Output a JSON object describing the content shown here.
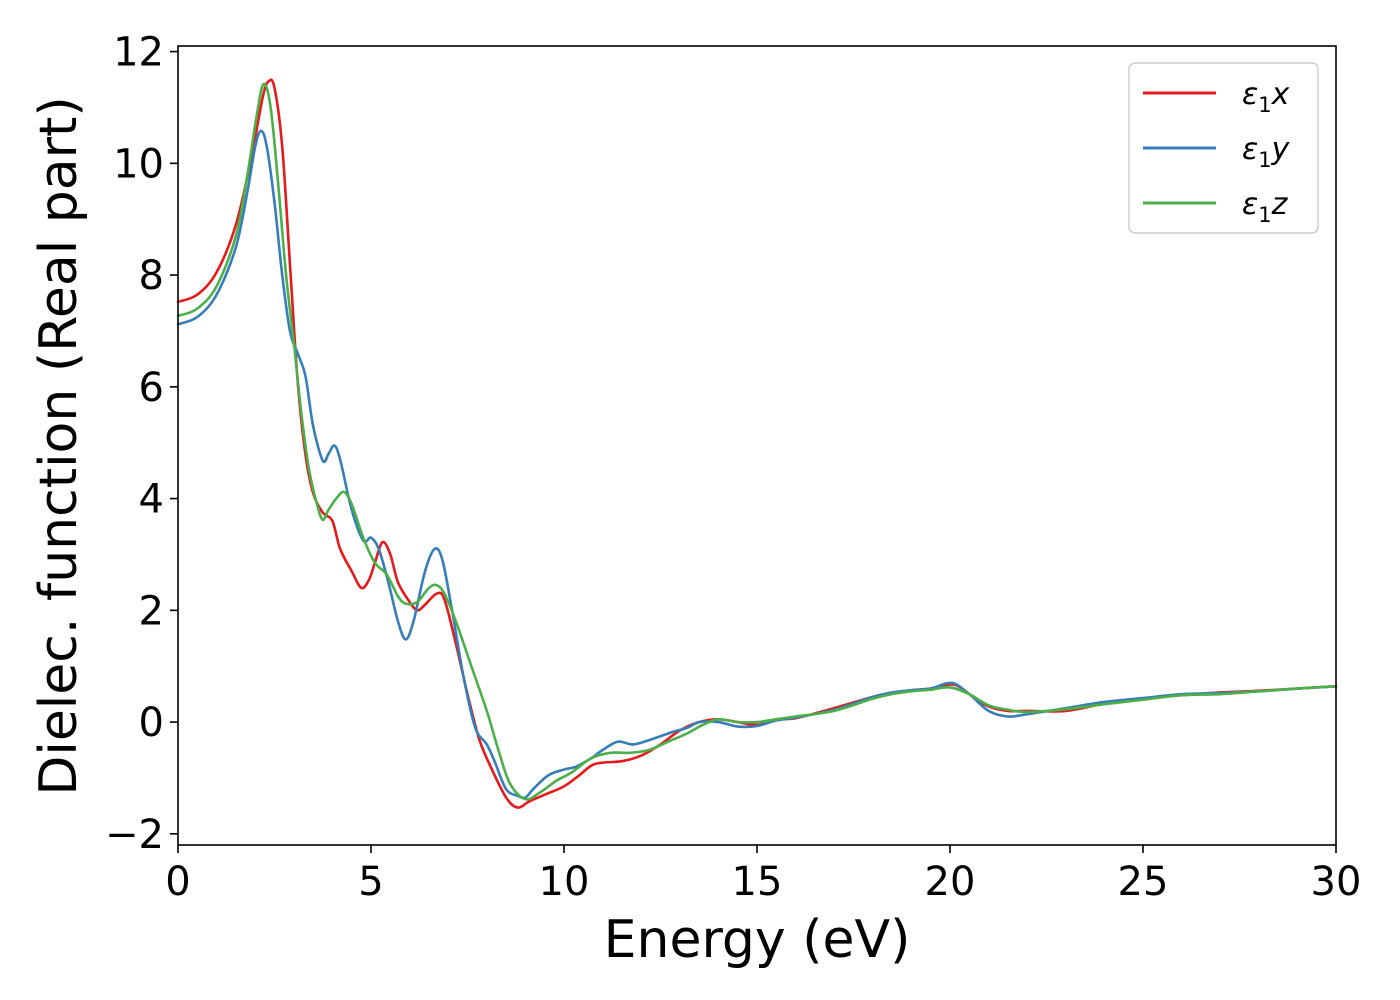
{
  "chart_data": {
    "type": "line",
    "title": "",
    "xlabel": "Energy (eV)",
    "ylabel": "Dielec. function (Real part)",
    "xlim": [
      0,
      30
    ],
    "ylim": [
      -2.2,
      12.1
    ],
    "xticks": [
      0,
      5,
      10,
      15,
      20,
      25,
      30
    ],
    "xtick_labels": [
      "0",
      "5",
      "10",
      "15",
      "20",
      "25",
      "30"
    ],
    "yticks": [
      -2,
      0,
      2,
      4,
      6,
      8,
      10,
      12
    ],
    "ytick_labels": [
      "−2",
      "0",
      "2",
      "4",
      "6",
      "8",
      "10",
      "12"
    ],
    "grid": false,
    "legend": {
      "placement": "top-right"
    },
    "series": [
      {
        "name": "ε₁x",
        "label_base": "ε",
        "label_sub": "1",
        "label_suffix": "x",
        "color": "#e41a1c",
        "points": [
          [
            0,
            7.52
          ],
          [
            0.5,
            7.65
          ],
          [
            1.0,
            8.05
          ],
          [
            1.5,
            8.9
          ],
          [
            1.9,
            10.1
          ],
          [
            2.2,
            11.2
          ],
          [
            2.35,
            11.47
          ],
          [
            2.5,
            11.35
          ],
          [
            2.7,
            10.3
          ],
          [
            2.9,
            8.2
          ],
          [
            3.1,
            6.1
          ],
          [
            3.3,
            4.8
          ],
          [
            3.5,
            4.1
          ],
          [
            3.75,
            3.75
          ],
          [
            4.0,
            3.6
          ],
          [
            4.2,
            3.1
          ],
          [
            4.5,
            2.7
          ],
          [
            4.75,
            2.4
          ],
          [
            4.95,
            2.55
          ],
          [
            5.1,
            2.85
          ],
          [
            5.3,
            3.22
          ],
          [
            5.5,
            3.0
          ],
          [
            5.7,
            2.5
          ],
          [
            6.0,
            2.15
          ],
          [
            6.2,
            2.0
          ],
          [
            6.4,
            2.1
          ],
          [
            6.7,
            2.3
          ],
          [
            6.9,
            2.2
          ],
          [
            7.2,
            1.4
          ],
          [
            7.5,
            0.5
          ],
          [
            7.8,
            -0.3
          ],
          [
            8.1,
            -0.8
          ],
          [
            8.5,
            -1.35
          ],
          [
            8.8,
            -1.53
          ],
          [
            9.1,
            -1.42
          ],
          [
            9.5,
            -1.3
          ],
          [
            10.0,
            -1.15
          ],
          [
            10.4,
            -0.95
          ],
          [
            10.8,
            -0.75
          ],
          [
            11.5,
            -0.7
          ],
          [
            12.0,
            -0.6
          ],
          [
            12.5,
            -0.4
          ],
          [
            13.0,
            -0.15
          ],
          [
            13.5,
            0.0
          ],
          [
            14.0,
            0.05
          ],
          [
            14.5,
            0.0
          ],
          [
            15.0,
            -0.05
          ],
          [
            15.5,
            0.05
          ],
          [
            16.0,
            0.07
          ],
          [
            17.0,
            0.25
          ],
          [
            18.0,
            0.45
          ],
          [
            18.5,
            0.52
          ],
          [
            19.0,
            0.57
          ],
          [
            19.5,
            0.6
          ],
          [
            20.1,
            0.67
          ],
          [
            20.6,
            0.45
          ],
          [
            21.0,
            0.28
          ],
          [
            21.5,
            0.2
          ],
          [
            22.0,
            0.2
          ],
          [
            23.0,
            0.2
          ],
          [
            24.0,
            0.33
          ],
          [
            25.0,
            0.42
          ],
          [
            26.0,
            0.48
          ],
          [
            27.0,
            0.53
          ],
          [
            28.0,
            0.56
          ],
          [
            29.0,
            0.6
          ],
          [
            30.0,
            0.64
          ]
        ]
      },
      {
        "name": "ε₁y",
        "label_base": "ε",
        "label_sub": "1",
        "label_suffix": "y",
        "color": "#377eb8",
        "points": [
          [
            0,
            7.12
          ],
          [
            0.5,
            7.25
          ],
          [
            1.0,
            7.65
          ],
          [
            1.5,
            8.5
          ],
          [
            1.8,
            9.5
          ],
          [
            2.0,
            10.3
          ],
          [
            2.15,
            10.58
          ],
          [
            2.3,
            10.3
          ],
          [
            2.5,
            9.3
          ],
          [
            2.7,
            8.0
          ],
          [
            2.9,
            7.0
          ],
          [
            3.1,
            6.6
          ],
          [
            3.3,
            6.2
          ],
          [
            3.5,
            5.3
          ],
          [
            3.75,
            4.68
          ],
          [
            3.9,
            4.8
          ],
          [
            4.05,
            4.95
          ],
          [
            4.2,
            4.7
          ],
          [
            4.5,
            3.8
          ],
          [
            4.8,
            3.25
          ],
          [
            5.0,
            3.3
          ],
          [
            5.2,
            3.1
          ],
          [
            5.45,
            2.5
          ],
          [
            5.7,
            1.8
          ],
          [
            5.9,
            1.48
          ],
          [
            6.1,
            1.8
          ],
          [
            6.4,
            2.7
          ],
          [
            6.65,
            3.1
          ],
          [
            6.85,
            2.9
          ],
          [
            7.1,
            2.0
          ],
          [
            7.4,
            0.8
          ],
          [
            7.7,
            -0.1
          ],
          [
            8.0,
            -0.4
          ],
          [
            8.2,
            -0.7
          ],
          [
            8.5,
            -1.2
          ],
          [
            8.8,
            -1.32
          ],
          [
            9.0,
            -1.35
          ],
          [
            9.2,
            -1.2
          ],
          [
            9.6,
            -0.95
          ],
          [
            10.0,
            -0.85
          ],
          [
            10.3,
            -0.8
          ],
          [
            10.7,
            -0.65
          ],
          [
            11.0,
            -0.5
          ],
          [
            11.4,
            -0.35
          ],
          [
            11.8,
            -0.4
          ],
          [
            12.3,
            -0.3
          ],
          [
            12.8,
            -0.18
          ],
          [
            13.2,
            -0.1
          ],
          [
            13.5,
            0.0
          ],
          [
            14.0,
            0.0
          ],
          [
            14.5,
            -0.08
          ],
          [
            15.0,
            -0.07
          ],
          [
            15.5,
            0.03
          ],
          [
            16.0,
            0.08
          ],
          [
            17.0,
            0.22
          ],
          [
            18.0,
            0.45
          ],
          [
            18.5,
            0.53
          ],
          [
            19.0,
            0.57
          ],
          [
            19.5,
            0.6
          ],
          [
            20.05,
            0.7
          ],
          [
            20.5,
            0.5
          ],
          [
            21.0,
            0.2
          ],
          [
            21.5,
            0.1
          ],
          [
            22.0,
            0.14
          ],
          [
            23.0,
            0.25
          ],
          [
            24.0,
            0.36
          ],
          [
            25.0,
            0.43
          ],
          [
            26.0,
            0.5
          ],
          [
            27.0,
            0.52
          ],
          [
            28.0,
            0.55
          ],
          [
            29.0,
            0.6
          ],
          [
            30.0,
            0.64
          ]
        ]
      },
      {
        "name": "ε₁z",
        "label_base": "ε",
        "label_sub": "1",
        "label_suffix": "z",
        "color": "#4daf4a",
        "points": [
          [
            0,
            7.27
          ],
          [
            0.5,
            7.4
          ],
          [
            1.0,
            7.8
          ],
          [
            1.5,
            8.7
          ],
          [
            1.8,
            9.8
          ],
          [
            2.05,
            10.9
          ],
          [
            2.22,
            11.42
          ],
          [
            2.4,
            11.0
          ],
          [
            2.6,
            9.6
          ],
          [
            2.8,
            8.0
          ],
          [
            3.0,
            6.8
          ],
          [
            3.2,
            5.5
          ],
          [
            3.4,
            4.5
          ],
          [
            3.6,
            3.9
          ],
          [
            3.75,
            3.62
          ],
          [
            3.9,
            3.8
          ],
          [
            4.1,
            4.0
          ],
          [
            4.3,
            4.12
          ],
          [
            4.5,
            3.9
          ],
          [
            4.8,
            3.3
          ],
          [
            5.1,
            2.85
          ],
          [
            5.4,
            2.65
          ],
          [
            5.7,
            2.25
          ],
          [
            5.9,
            2.12
          ],
          [
            6.2,
            2.15
          ],
          [
            6.5,
            2.4
          ],
          [
            6.7,
            2.45
          ],
          [
            6.9,
            2.3
          ],
          [
            7.2,
            1.8
          ],
          [
            7.6,
            1.0
          ],
          [
            8.0,
            0.2
          ],
          [
            8.3,
            -0.5
          ],
          [
            8.6,
            -1.1
          ],
          [
            9.0,
            -1.38
          ],
          [
            9.4,
            -1.25
          ],
          [
            9.8,
            -1.05
          ],
          [
            10.2,
            -0.9
          ],
          [
            10.7,
            -0.65
          ],
          [
            11.2,
            -0.55
          ],
          [
            11.7,
            -0.55
          ],
          [
            12.2,
            -0.5
          ],
          [
            12.7,
            -0.35
          ],
          [
            13.2,
            -0.2
          ],
          [
            13.6,
            -0.05
          ],
          [
            14.0,
            0.05
          ],
          [
            14.5,
            0.0
          ],
          [
            15.0,
            0.0
          ],
          [
            15.5,
            0.05
          ],
          [
            16.0,
            0.1
          ],
          [
            17.0,
            0.2
          ],
          [
            18.0,
            0.42
          ],
          [
            18.5,
            0.5
          ],
          [
            19.0,
            0.55
          ],
          [
            19.5,
            0.58
          ],
          [
            20.0,
            0.62
          ],
          [
            20.5,
            0.5
          ],
          [
            21.0,
            0.3
          ],
          [
            21.5,
            0.22
          ],
          [
            22.0,
            0.18
          ],
          [
            23.0,
            0.23
          ],
          [
            24.0,
            0.32
          ],
          [
            25.0,
            0.4
          ],
          [
            26.0,
            0.48
          ],
          [
            27.0,
            0.5
          ],
          [
            28.0,
            0.55
          ],
          [
            29.0,
            0.6
          ],
          [
            30.0,
            0.64
          ]
        ]
      }
    ]
  }
}
